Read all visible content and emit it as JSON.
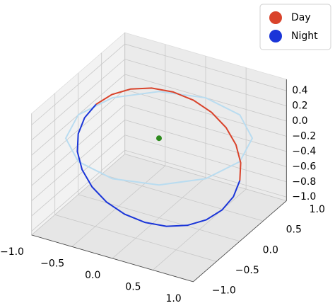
{
  "chart_data": {
    "type": "line3d",
    "xlim": [
      -1.0,
      1.0
    ],
    "ylim": [
      -1.0,
      1.0
    ],
    "zlim": [
      -1.05,
      0.55
    ],
    "xticks": [
      {
        "value": -1.0,
        "label": "−1.0"
      },
      {
        "value": -0.5,
        "label": "−0.5"
      },
      {
        "value": 0.0,
        "label": "0.0"
      },
      {
        "value": 0.5,
        "label": "0.5"
      },
      {
        "value": 1.0,
        "label": "1.0"
      }
    ],
    "yticks": [
      {
        "value": -1.0,
        "label": "−1.0"
      },
      {
        "value": -0.5,
        "label": "−0.5"
      },
      {
        "value": 0.0,
        "label": "0.0"
      },
      {
        "value": 0.5,
        "label": "0.5"
      },
      {
        "value": 1.0,
        "label": "1.0"
      }
    ],
    "zticks": [
      {
        "value": -1.0,
        "label": "−1.0"
      },
      {
        "value": -0.8,
        "label": "−0.8"
      },
      {
        "value": -0.6,
        "label": "−0.6"
      },
      {
        "value": -0.4,
        "label": "−0.4"
      },
      {
        "value": -0.2,
        "label": "−0.2"
      },
      {
        "value": 0.0,
        "label": "0.0"
      },
      {
        "value": 0.2,
        "label": "0.2"
      },
      {
        "value": 0.4,
        "label": "0.4"
      }
    ],
    "grid": true,
    "legend": "upper right",
    "series": [
      {
        "color": "#b9dcf0",
        "x": [
          1,
          0.866,
          0.5,
          0,
          -0.5,
          -0.866,
          -1,
          -0.866,
          -0.5,
          0,
          0.5,
          0.866,
          1
        ],
        "y": [
          0,
          0.5,
          0.866,
          1,
          0.866,
          0.5,
          0,
          -0.5,
          -0.866,
          -1,
          -0.866,
          -0.5,
          0
        ],
        "z": [
          0,
          0,
          0,
          0,
          0,
          0,
          0,
          0,
          0,
          0,
          0,
          0,
          0
        ]
      },
      {
        "name": "Day",
        "color": "#d9432b",
        "x": [
          1,
          0.966,
          0.866,
          0.707,
          0.5,
          0.259,
          0,
          -0.259,
          -0.5,
          -0.707,
          -0.866
        ],
        "y": [
          0,
          0.078,
          0.15,
          0.212,
          0.26,
          0.29,
          0.3,
          0.29,
          0.26,
          0.212,
          0.15
        ],
        "z": [
          -0.25,
          -0.069,
          0.1,
          0.245,
          0.356,
          0.426,
          0.45,
          0.426,
          0.356,
          0.245,
          0.1
        ]
      },
      {
        "name": "Night",
        "color": "#1a35d8",
        "x": [
          -0.866,
          -0.966,
          -1,
          -0.966,
          -0.866,
          -0.707,
          -0.5,
          -0.259,
          0,
          0.259,
          0.5,
          0.707,
          0.866,
          0.966,
          1
        ],
        "y": [
          0.15,
          0.078,
          0,
          -0.078,
          -0.15,
          -0.212,
          -0.26,
          -0.29,
          -0.3,
          -0.29,
          -0.26,
          -0.212,
          -0.15,
          -0.078,
          0
        ],
        "z": [
          0.1,
          -0.069,
          -0.25,
          -0.431,
          -0.6,
          -0.745,
          -0.856,
          -0.926,
          -0.95,
          -0.926,
          -0.856,
          -0.745,
          -0.6,
          -0.431,
          -0.25
        ]
      },
      {
        "color": "#2e8b1e",
        "marker": true,
        "x": [
          0
        ],
        "y": [
          0
        ],
        "z": [
          0
        ]
      }
    ]
  }
}
